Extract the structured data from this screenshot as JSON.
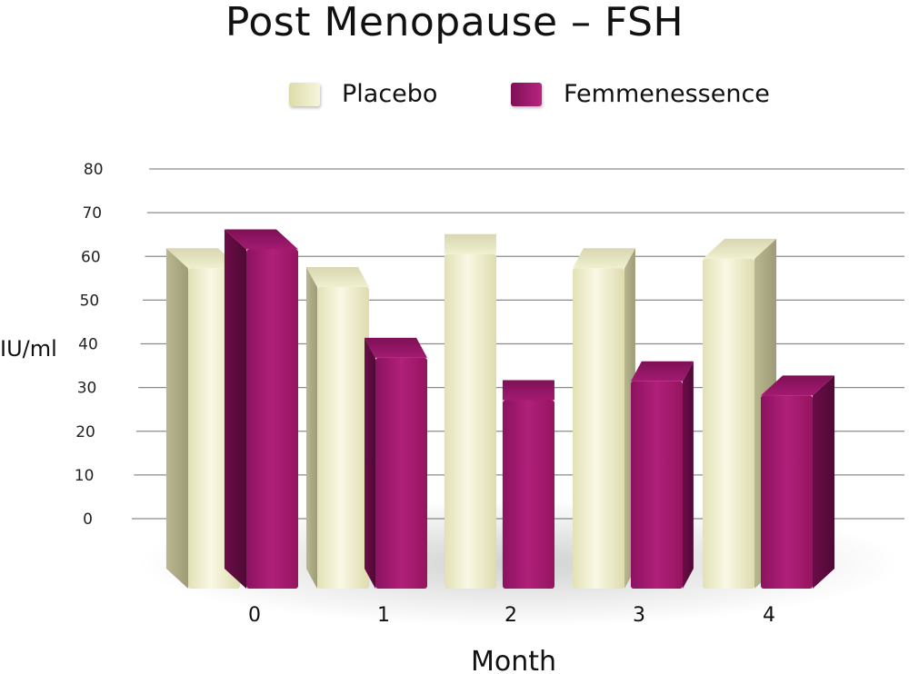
{
  "chart_data": {
    "type": "bar",
    "title": "Post Menopause – FSH",
    "xlabel": "Month",
    "ylabel": "IU/ml",
    "categories": [
      "0",
      "1",
      "2",
      "3",
      "4"
    ],
    "ylim": [
      0,
      80
    ],
    "yticks": [
      0,
      10,
      20,
      30,
      40,
      50,
      60,
      70,
      80
    ],
    "grid": true,
    "legend_position": "top",
    "series": [
      {
        "name": "Placebo",
        "values": [
          68,
          64,
          71,
          68,
          70
        ],
        "color": "#ecebc4"
      },
      {
        "name": "Femmenessence",
        "values": [
          72,
          49,
          40,
          44,
          41
        ],
        "color": "#a2186f"
      }
    ]
  }
}
